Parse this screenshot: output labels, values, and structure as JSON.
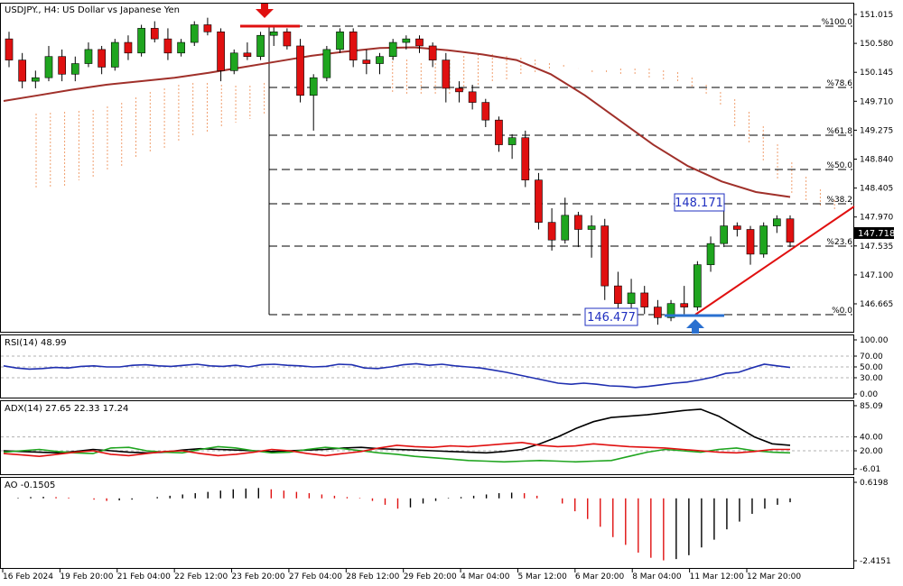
{
  "header": {
    "symbol_title": "USDJPY., H4:  US Dollar vs Japanese Yen",
    "current_price": "147.718"
  },
  "colors": {
    "bull": "#1fa51f",
    "bear": "#e01010",
    "ma": "#a0302a",
    "cloud": "#f0a070",
    "rsi": "#1f2fb0",
    "adx_main": "#000000",
    "adx_plus": "#1fa51f",
    "adx_minus": "#e01010",
    "trendline": "#e01010",
    "arrow_down": "#e01010",
    "arrow_up": "#2a70d0",
    "label_box": "#2030c0"
  },
  "chart_data": [
    {
      "type": "candlestick",
      "title": "USDJPY., H4:  US Dollar vs Japanese Yen",
      "ylim": [
        146.45,
        151.1
      ],
      "y_ticks": [
        "151.015",
        "150.580",
        "150.145",
        "149.710",
        "149.275",
        "148.840",
        "148.405",
        "147.970",
        "147.535",
        "147.100",
        "146.665"
      ],
      "x_ticks": [
        "16 Feb 2024",
        "19 Feb 20:00",
        "21 Feb 04:00",
        "22 Feb 12:00",
        "23 Feb 20:00",
        "27 Feb 04:00",
        "28 Feb 12:00",
        "29 Feb 20:00",
        "4 Mar 04:00",
        "5 Mar 12:00",
        "6 Mar 20:00",
        "8 Mar 04:00",
        "11 Mar 12:00",
        "12 Mar 20:00"
      ],
      "fib_levels": [
        {
          "label": "%100.0",
          "price": 150.88
        },
        {
          "label": "%78.6",
          "price": 149.99
        },
        {
          "label": "%61.8",
          "price": 149.27
        },
        {
          "label": "%50.0",
          "price": 148.78
        },
        {
          "label": "%38.2",
          "price": 148.27
        },
        {
          "label": "%23.6",
          "price": 147.69
        },
        {
          "label": "%0.0",
          "price": 146.67
        }
      ],
      "annotations": [
        {
          "text": "148.171",
          "price": 148.24
        },
        {
          "text": "146.477",
          "price": 146.61
        }
      ],
      "moving_average": [
        149.72,
        149.8,
        149.88,
        149.95,
        150.0,
        150.05,
        150.12,
        150.2,
        150.28,
        150.36,
        150.42,
        150.47,
        150.48,
        150.44,
        150.38,
        150.3,
        150.1,
        149.8,
        149.45,
        149.1,
        148.8,
        148.58,
        148.43,
        148.36
      ],
      "candles_ohlc": [
        [
          150.6,
          150.7,
          150.2,
          150.3
        ],
        [
          150.3,
          150.4,
          149.9,
          150.0
        ],
        [
          150.0,
          150.15,
          149.9,
          150.05
        ],
        [
          150.05,
          150.5,
          150.0,
          150.35
        ],
        [
          150.35,
          150.45,
          150.0,
          150.1
        ],
        [
          150.1,
          150.35,
          150.0,
          150.25
        ],
        [
          150.25,
          150.55,
          150.2,
          150.45
        ],
        [
          150.45,
          150.5,
          150.1,
          150.2
        ],
        [
          150.2,
          150.6,
          150.15,
          150.55
        ],
        [
          150.55,
          150.65,
          150.3,
          150.4
        ],
        [
          150.4,
          150.8,
          150.35,
          150.75
        ],
        [
          150.75,
          150.85,
          150.55,
          150.6
        ],
        [
          150.6,
          150.75,
          150.3,
          150.4
        ],
        [
          150.4,
          150.6,
          150.35,
          150.55
        ],
        [
          150.55,
          150.85,
          150.5,
          150.8
        ],
        [
          150.8,
          150.9,
          150.65,
          150.7
        ],
        [
          150.7,
          150.75,
          150.0,
          150.15
        ],
        [
          150.15,
          150.45,
          150.1,
          150.4
        ],
        [
          150.4,
          150.55,
          150.3,
          150.35
        ],
        [
          150.35,
          150.7,
          150.3,
          150.65
        ],
        [
          150.65,
          150.8,
          150.5,
          150.7
        ],
        [
          150.7,
          150.75,
          150.45,
          150.5
        ],
        [
          150.5,
          150.6,
          149.7,
          149.8
        ],
        [
          149.8,
          150.1,
          149.3,
          150.05
        ],
        [
          150.05,
          150.5,
          150.0,
          150.45
        ],
        [
          150.45,
          150.75,
          150.4,
          150.7
        ],
        [
          150.7,
          150.75,
          150.2,
          150.3
        ],
        [
          150.3,
          150.45,
          150.1,
          150.25
        ],
        [
          150.25,
          150.4,
          150.1,
          150.35
        ],
        [
          150.35,
          150.6,
          150.3,
          150.55
        ],
        [
          150.55,
          150.65,
          150.45,
          150.6
        ],
        [
          150.6,
          150.65,
          150.4,
          150.5
        ],
        [
          150.5,
          150.55,
          150.2,
          150.3
        ],
        [
          150.3,
          150.4,
          149.7,
          149.9
        ],
        [
          149.9,
          150.0,
          149.7,
          149.85
        ],
        [
          149.85,
          149.95,
          149.6,
          149.7
        ],
        [
          149.7,
          149.75,
          149.35,
          149.45
        ],
        [
          149.45,
          149.5,
          149.0,
          149.1
        ],
        [
          149.1,
          149.25,
          148.9,
          149.2
        ],
        [
          149.2,
          149.3,
          148.5,
          148.6
        ],
        [
          148.6,
          148.7,
          147.9,
          148.0
        ],
        [
          148.0,
          148.2,
          147.6,
          147.75
        ],
        [
          147.75,
          148.35,
          147.7,
          148.1
        ],
        [
          148.1,
          148.15,
          147.65,
          147.9
        ],
        [
          147.9,
          148.1,
          147.5,
          147.95
        ],
        [
          147.95,
          148.05,
          146.9,
          147.1
        ],
        [
          147.1,
          147.3,
          146.6,
          146.85
        ],
        [
          146.85,
          147.2,
          146.75,
          147.0
        ],
        [
          147.0,
          147.1,
          146.7,
          146.8
        ],
        [
          146.8,
          146.9,
          146.55,
          146.65
        ],
        [
          146.65,
          146.9,
          146.6,
          146.85
        ],
        [
          146.85,
          147.1,
          146.7,
          146.8
        ],
        [
          146.8,
          147.45,
          146.75,
          147.4
        ],
        [
          147.4,
          147.8,
          147.3,
          147.7
        ],
        [
          147.7,
          148.25,
          147.65,
          147.95
        ],
        [
          147.95,
          148.0,
          147.8,
          147.9
        ],
        [
          147.9,
          147.95,
          147.4,
          147.55
        ],
        [
          147.55,
          148.0,
          147.5,
          147.95
        ],
        [
          147.95,
          148.1,
          147.85,
          148.05
        ],
        [
          148.05,
          148.1,
          147.65,
          147.72
        ]
      ]
    },
    {
      "type": "line",
      "title": "RSI(14) 48.99",
      "ylim": [
        0,
        100
      ],
      "y_ticks": [
        "100.00",
        "70.00",
        "50.00",
        "30.00",
        "0.00"
      ],
      "series": [
        {
          "values": [
            52,
            48,
            46,
            47,
            49,
            48,
            51,
            52,
            50,
            50,
            53,
            54,
            52,
            51,
            53,
            55,
            52,
            51,
            53,
            50,
            54,
            55,
            53,
            52,
            50,
            51,
            55,
            54,
            48,
            47,
            50,
            54,
            56,
            53,
            55,
            52,
            50,
            48,
            44,
            40,
            35,
            30,
            25,
            20,
            18,
            20,
            18,
            15,
            14,
            12,
            14,
            17,
            20,
            22,
            26,
            31,
            38,
            40,
            48,
            55,
            52,
            49
          ]
        }
      ]
    },
    {
      "type": "line",
      "title": "ADX(14) 27.65 22.33 17.24",
      "ylim": [
        -6.01,
        85.09
      ],
      "y_ticks": [
        "85.09",
        "40.00",
        "20.00",
        "-6.01"
      ],
      "series": [
        {
          "name": "ADX",
          "values": [
            20,
            19,
            18,
            17,
            19,
            22,
            20,
            18,
            17,
            18,
            21,
            23,
            22,
            21,
            20,
            19,
            20,
            21,
            22,
            24,
            25,
            23,
            22,
            21,
            20,
            19,
            18,
            17,
            19,
            22,
            30,
            40,
            52,
            62,
            68,
            70,
            72,
            75,
            78,
            80,
            70,
            55,
            40,
            30,
            28
          ]
        },
        {
          "name": "+DI",
          "values": [
            18,
            20,
            22,
            19,
            17,
            16,
            24,
            25,
            20,
            18,
            17,
            22,
            26,
            24,
            20,
            17,
            18,
            22,
            25,
            23,
            20,
            17,
            15,
            12,
            10,
            8,
            6,
            5,
            4,
            5,
            6,
            5,
            4,
            5,
            6,
            12,
            18,
            22,
            20,
            18,
            22,
            24,
            20,
            18,
            17
          ]
        },
        {
          "name": "-DI",
          "values": [
            16,
            14,
            12,
            15,
            18,
            20,
            15,
            13,
            16,
            19,
            20,
            16,
            13,
            15,
            18,
            22,
            20,
            16,
            13,
            16,
            19,
            24,
            28,
            26,
            25,
            27,
            26,
            28,
            30,
            32,
            28,
            26,
            27,
            30,
            28,
            26,
            25,
            24,
            22,
            20,
            18,
            17,
            19,
            22,
            22
          ]
        }
      ]
    },
    {
      "type": "bar",
      "title": "AO -0.1505",
      "ylim": [
        -2.4151,
        0.6198
      ],
      "y_ticks": [
        "0.6198",
        "-2.4151"
      ],
      "values": [
        0.02,
        0.05,
        0.06,
        0.05,
        0.03,
        0.0,
        -0.05,
        -0.1,
        -0.08,
        -0.05,
        0.0,
        0.05,
        0.1,
        0.15,
        0.2,
        0.25,
        0.3,
        0.35,
        0.38,
        0.4,
        0.35,
        0.3,
        0.25,
        0.2,
        0.15,
        0.1,
        0.05,
        0.02,
        -0.1,
        -0.25,
        -0.4,
        -0.35,
        -0.2,
        -0.1,
        0.02,
        0.05,
        0.1,
        0.15,
        0.2,
        0.22,
        0.2,
        0.1,
        0.0,
        -0.2,
        -0.5,
        -0.8,
        -1.1,
        -1.5,
        -1.8,
        -2.1,
        -2.3,
        -2.4,
        -2.35,
        -2.2,
        -1.9,
        -1.6,
        -1.2,
        -0.9,
        -0.6,
        -0.4,
        -0.25,
        -0.15
      ]
    }
  ]
}
